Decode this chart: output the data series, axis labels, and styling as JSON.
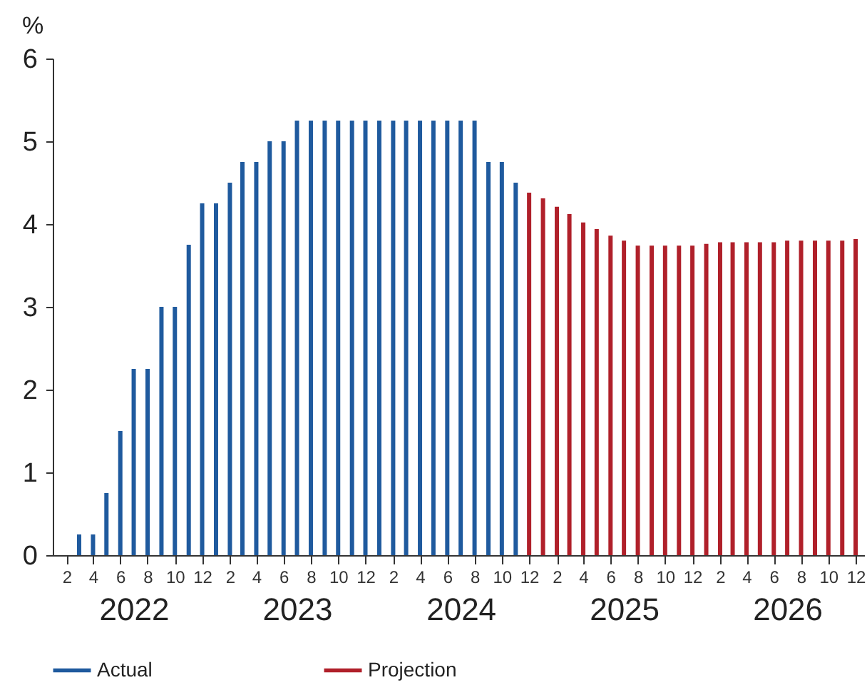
{
  "chart_data": {
    "type": "bar",
    "ylabel": "%",
    "ylim": [
      0,
      6
    ],
    "yticks": [
      0,
      1,
      2,
      3,
      4,
      5,
      6
    ],
    "xlim": [
      "2022-01-01",
      "2026-12-20"
    ],
    "xticks": [
      {
        "value": "2022-02",
        "label": "2"
      },
      {
        "value": "2022-04",
        "label": "4"
      },
      {
        "value": "2022-06",
        "label": "6"
      },
      {
        "value": "2022-08",
        "label": "8"
      },
      {
        "value": "2022-10",
        "label": "10"
      },
      {
        "value": "2022-12",
        "label": "12"
      },
      {
        "value": "2023-02",
        "label": "2"
      },
      {
        "value": "2023-04",
        "label": "4"
      },
      {
        "value": "2023-06",
        "label": "6"
      },
      {
        "value": "2023-08",
        "label": "8"
      },
      {
        "value": "2023-10",
        "label": "10"
      },
      {
        "value": "2023-12",
        "label": "12"
      },
      {
        "value": "2024-02",
        "label": "2"
      },
      {
        "value": "2024-04",
        "label": "4"
      },
      {
        "value": "2024-06",
        "label": "6"
      },
      {
        "value": "2024-08",
        "label": "8"
      },
      {
        "value": "2024-10",
        "label": "10"
      },
      {
        "value": "2024-12",
        "label": "12"
      },
      {
        "value": "2025-02",
        "label": "2"
      },
      {
        "value": "2025-04",
        "label": "4"
      },
      {
        "value": "2025-06",
        "label": "6"
      },
      {
        "value": "2025-08",
        "label": "8"
      },
      {
        "value": "2025-10",
        "label": "10"
      },
      {
        "value": "2025-12",
        "label": "12"
      },
      {
        "value": "2026-02",
        "label": "2"
      },
      {
        "value": "2026-04",
        "label": "4"
      },
      {
        "value": "2026-06",
        "label": "6"
      },
      {
        "value": "2026-08",
        "label": "8"
      },
      {
        "value": "2026-10",
        "label": "10"
      },
      {
        "value": "2026-12",
        "label": "12"
      }
    ],
    "x2lim": [
      "2022-01-01",
      "2026-12-20"
    ],
    "x2ticks": [
      {
        "value": "2022-07",
        "label": "2022"
      },
      {
        "value": "2023-07",
        "label": "2023"
      },
      {
        "value": "2024-07",
        "label": "2024"
      },
      {
        "value": "2025-07",
        "label": "2025"
      },
      {
        "value": "2026-07",
        "label": "2026"
      }
    ],
    "legend": "bottom",
    "series": [
      {
        "name": "Actual",
        "color": "#1f5a9e",
        "x": [
          "2022-03",
          "2022-04",
          "2022-05",
          "2022-06",
          "2022-07",
          "2022-08",
          "2022-09",
          "2022-10",
          "2022-11",
          "2022-12",
          "2023-01",
          "2023-02",
          "2023-03",
          "2023-04",
          "2023-05",
          "2023-06",
          "2023-07",
          "2023-08",
          "2023-09",
          "2023-10",
          "2023-11",
          "2023-12",
          "2024-01",
          "2024-02",
          "2024-03",
          "2024-04",
          "2024-05",
          "2024-06",
          "2024-07",
          "2024-08",
          "2024-09",
          "2024-10",
          "2024-11"
        ],
        "values": [
          0.25,
          0.25,
          0.75,
          1.5,
          2.25,
          2.25,
          3,
          3,
          3.75,
          4.25,
          4.25,
          4.5,
          4.75,
          4.75,
          5,
          5,
          5.25,
          5.25,
          5.25,
          5.25,
          5.25,
          5.25,
          5.25,
          5.25,
          5.25,
          5.25,
          5.25,
          5.25,
          5.25,
          5.25,
          4.75,
          4.75,
          4.5
        ]
      },
      {
        "name": "Projection",
        "color": "#b0202a",
        "x": [
          "2024-12",
          "2025-01",
          "2025-02",
          "2025-03",
          "2025-04",
          "2025-05",
          "2025-06",
          "2025-07",
          "2025-08",
          "2025-09",
          "2025-10",
          "2025-11",
          "2025-12",
          "2026-01",
          "2026-02",
          "2026-03",
          "2026-04",
          "2026-05",
          "2026-06",
          "2026-07",
          "2026-08",
          "2026-09",
          "2026-10",
          "2026-11",
          "2026-12"
        ],
        "values": [
          4.38,
          4.31,
          4.21,
          4.12,
          4.02,
          3.94,
          3.86,
          3.8,
          3.74,
          3.74,
          3.74,
          3.74,
          3.74,
          3.76,
          3.78,
          3.78,
          3.78,
          3.78,
          3.78,
          3.8,
          3.8,
          3.8,
          3.8,
          3.8,
          3.82
        ]
      }
    ]
  }
}
